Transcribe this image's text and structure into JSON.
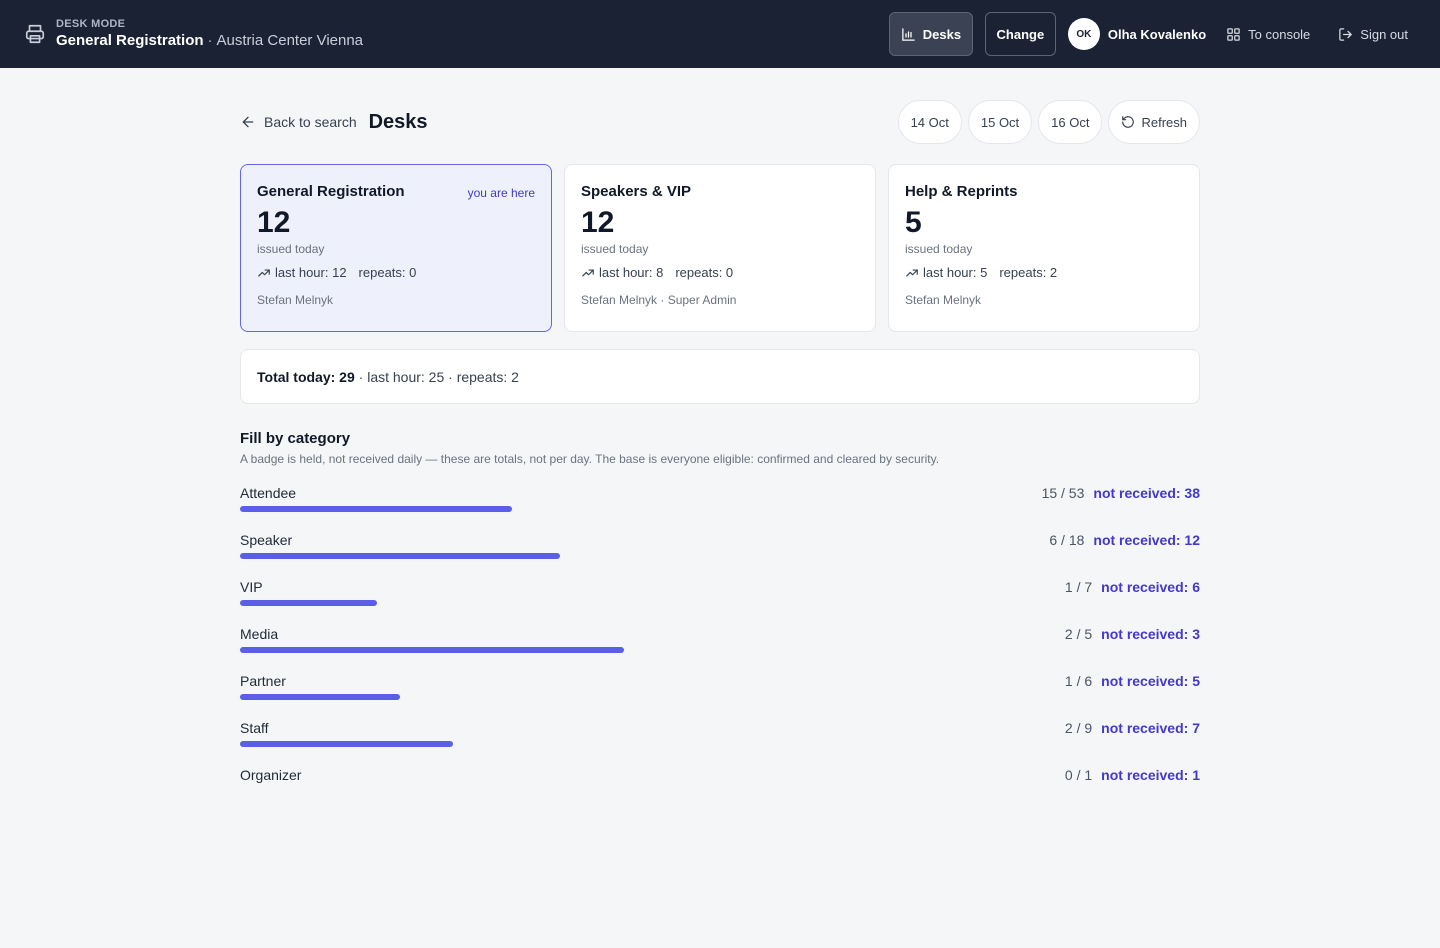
{
  "topbar": {
    "mode_label": "DESK MODE",
    "desk": "General Registration",
    "separator": "·",
    "venue": "Austria Center Vienna",
    "desks_button": "Desks",
    "change_button": "Change",
    "avatar_initials": "OK",
    "user_name": "Olha Kovalenko",
    "console_link": "To console",
    "signout_link": "Sign out"
  },
  "header": {
    "back_label": "Back to search",
    "title": "Desks",
    "dates": [
      "14 Oct",
      "15 Oct",
      "16 Oct"
    ],
    "refresh_label": "Refresh"
  },
  "cards": [
    {
      "title": "General Registration",
      "here": "you are here",
      "count": "12",
      "issued": "issued today",
      "last_hour": "last hour: 12",
      "repeats": "repeats: 0",
      "staff": "Stefan Melnyk"
    },
    {
      "title": "Speakers & VIP",
      "count": "12",
      "issued": "issued today",
      "last_hour": "last hour: 8",
      "repeats": "repeats: 0",
      "staff": "Stefan Melnyk · Super Admin"
    },
    {
      "title": "Help & Reprints",
      "count": "5",
      "issued": "issued today",
      "last_hour": "last hour: 5",
      "repeats": "repeats: 2",
      "staff": "Stefan Melnyk"
    }
  ],
  "total": {
    "label": "Total today: 29",
    "rest": " · last hour: 25 · repeats: 2"
  },
  "fill": {
    "title": "Fill by category",
    "description": "A badge is held, not received daily — these are totals, not per day. The base is everyone eligible: confirmed and cleared by security.",
    "categories": [
      {
        "name": "Attendee",
        "ratio": "15 / 53",
        "not_received": "not received: 38",
        "fraction": 0.283
      },
      {
        "name": "Speaker",
        "ratio": "6 / 18",
        "not_received": "not received: 12",
        "fraction": 0.333
      },
      {
        "name": "VIP",
        "ratio": "1 / 7",
        "not_received": "not received: 6",
        "fraction": 0.143
      },
      {
        "name": "Media",
        "ratio": "2 / 5",
        "not_received": "not received: 3",
        "fraction": 0.4
      },
      {
        "name": "Partner",
        "ratio": "1 / 6",
        "not_received": "not received: 5",
        "fraction": 0.167
      },
      {
        "name": "Staff",
        "ratio": "2 / 9",
        "not_received": "not received: 7",
        "fraction": 0.222
      },
      {
        "name": "Organizer",
        "ratio": "0 / 1",
        "not_received": "not received: 1",
        "fraction": 0
      }
    ]
  },
  "colors": {
    "topbar": "#1b2233",
    "accent": "#5b5ee6",
    "link": "#4338ca"
  }
}
